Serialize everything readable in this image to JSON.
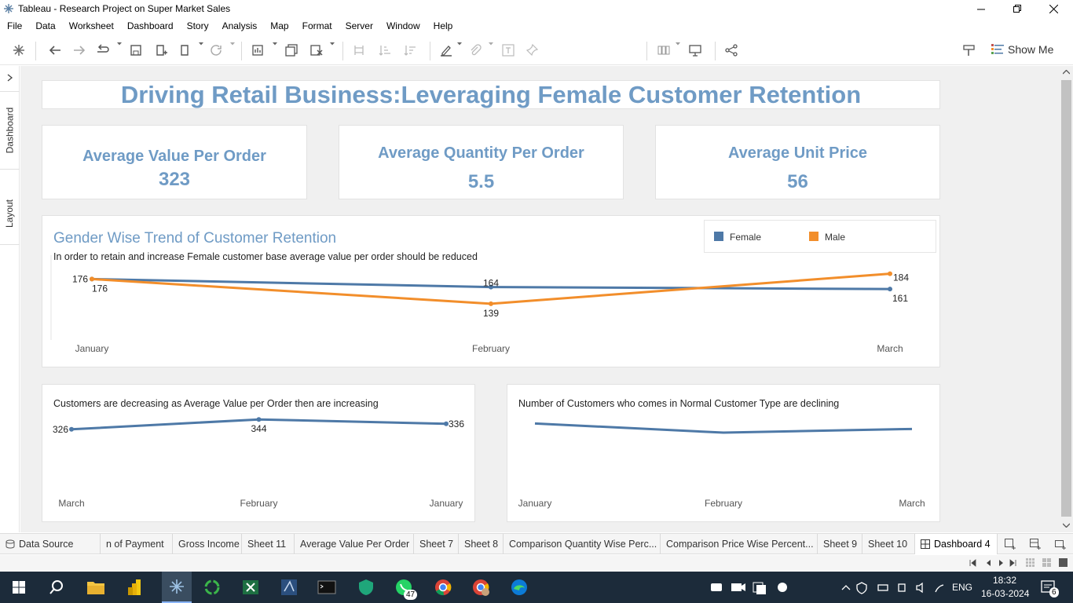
{
  "window": {
    "title": "Tableau - Research Project on Super Market Sales",
    "controls": [
      "minimize",
      "restore",
      "close"
    ]
  },
  "menu": [
    "File",
    "Data",
    "Worksheet",
    "Dashboard",
    "Story",
    "Analysis",
    "Map",
    "Format",
    "Server",
    "Window",
    "Help"
  ],
  "toolbar": {
    "show_me_label": "Show Me"
  },
  "side_panel": {
    "tabs": [
      "Dashboard",
      "Layout"
    ]
  },
  "dashboard": {
    "title": "Driving Retail Business:Leveraging Female Customer Retention",
    "kpis": [
      {
        "label": "Average Value Per Order",
        "value": "323"
      },
      {
        "label": "Average Quantity Per Order",
        "value": "5.5"
      },
      {
        "label": "Average Unit Price",
        "value": "56"
      }
    ],
    "colors": {
      "accent": "#6f9bc5",
      "female": "#4e79a7",
      "male": "#f28e2b"
    }
  },
  "chart_data": [
    {
      "type": "line",
      "title": "Gender Wise Trend of Customer Retention",
      "subtitle": "In order to retain and increase Female  customer base average value per order should be reduced",
      "categories": [
        "January",
        "February",
        "March"
      ],
      "series": [
        {
          "name": "Female",
          "values": [
            176,
            164,
            161
          ],
          "labels": [
            "176",
            "164",
            "161"
          ]
        },
        {
          "name": "Male",
          "values": [
            176,
            139,
            184
          ],
          "labels": [
            "176",
            "139",
            "184"
          ]
        }
      ],
      "legend": "top-right",
      "ylim": [
        120,
        200
      ],
      "grid": false
    },
    {
      "type": "line",
      "title": "Customers are decreasing  as Average Value per Order then  are increasing",
      "categories": [
        "March",
        "February",
        "January"
      ],
      "series": [
        {
          "values": [
            326,
            344,
            336
          ],
          "labels": [
            "326",
            "344",
            "336"
          ]
        }
      ],
      "ylim": [
        250,
        350
      ],
      "grid": false
    },
    {
      "type": "line",
      "title": "Number of Customers who comes in Normal Customer Type are declining",
      "categories": [
        "January",
        "February",
        "March"
      ],
      "series": [
        {
          "values": [
            98,
            83,
            89
          ]
        }
      ],
      "ylim": [
        20,
        110
      ],
      "grid": false
    }
  ],
  "sheet_tabs": [
    {
      "label": "Data Source"
    },
    {
      "label": "n of Payment"
    },
    {
      "label": "Gross Income"
    },
    {
      "label": "Sheet 11"
    },
    {
      "label": "Average Value Per Order"
    },
    {
      "label": "Sheet 7"
    },
    {
      "label": "Sheet 8"
    },
    {
      "label": "Comparison Quantity Wise Perc..."
    },
    {
      "label": "Comparison Price Wise Percent..."
    },
    {
      "label": "Sheet 9"
    },
    {
      "label": "Sheet 10"
    },
    {
      "label": "Dashboard 4",
      "active": true
    }
  ],
  "taskbar": {
    "whatsapp_badge": "47",
    "language": "ENG",
    "time": "18:32",
    "date": "16-03-2024",
    "notifications": "6"
  }
}
